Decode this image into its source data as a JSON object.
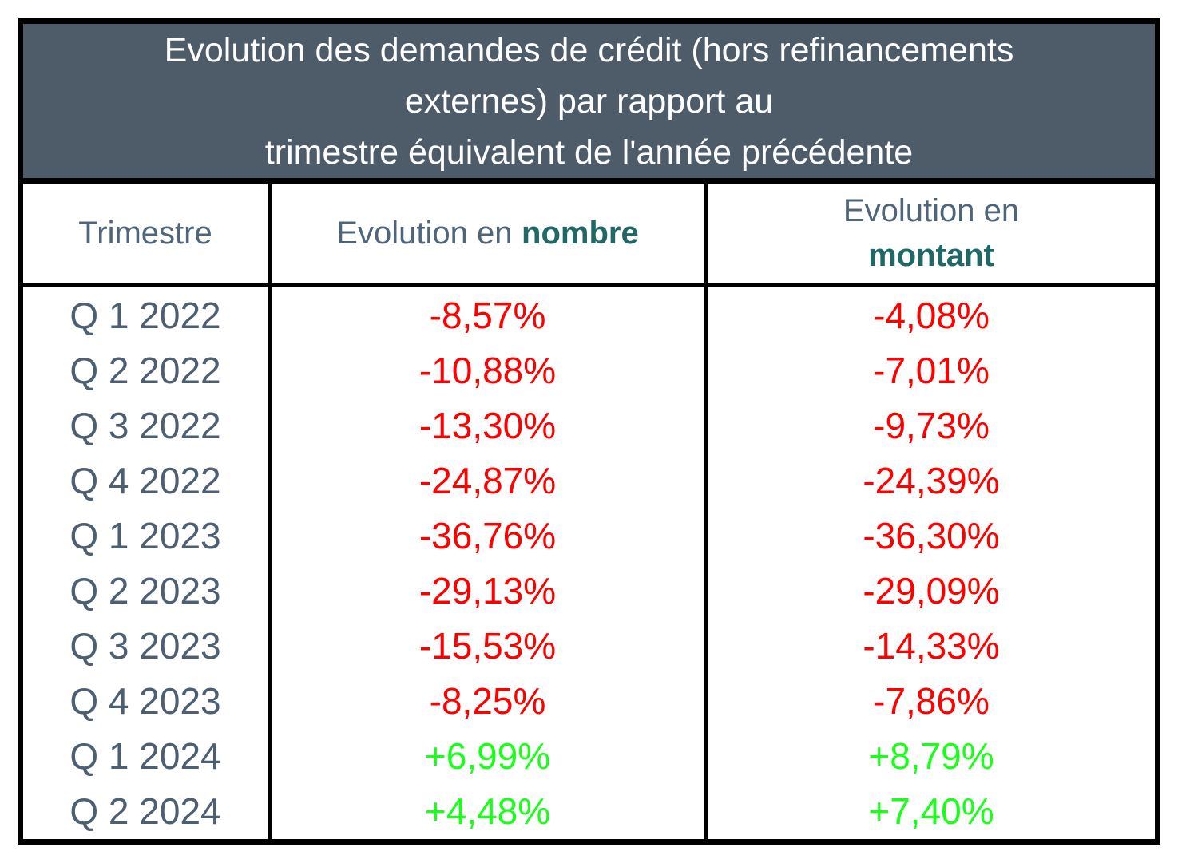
{
  "title_lines": [
    "Evolution des demandes de crédit (hors refinancements",
    "externes) par rapport au",
    "trimestre équivalent de l'année précédente"
  ],
  "headers": {
    "trimestre": "Trimestre",
    "evolution_en": "Evolution en",
    "nombre": "nombre",
    "montant": "montant"
  },
  "rows": [
    {
      "quarter": "Q 1 2022",
      "nombre": "-8,57%",
      "montant": "-4,08%",
      "trend": "neg"
    },
    {
      "quarter": "Q 2 2022",
      "nombre": "-10,88%",
      "montant": "-7,01%",
      "trend": "neg"
    },
    {
      "quarter": "Q 3 2022",
      "nombre": "-13,30%",
      "montant": "-9,73%",
      "trend": "neg"
    },
    {
      "quarter": "Q 4 2022",
      "nombre": "-24,87%",
      "montant": "-24,39%",
      "trend": "neg"
    },
    {
      "quarter": "Q 1 2023",
      "nombre": "-36,76%",
      "montant": "-36,30%",
      "trend": "neg"
    },
    {
      "quarter": "Q 2 2023",
      "nombre": "-29,13%",
      "montant": "-29,09%",
      "trend": "neg"
    },
    {
      "quarter": "Q 3 2023",
      "nombre": "-15,53%",
      "montant": "-14,33%",
      "trend": "neg"
    },
    {
      "quarter": "Q 4 2023",
      "nombre": "-8,25%",
      "montant": "-7,86%",
      "trend": "neg"
    },
    {
      "quarter": "Q 1 2024",
      "nombre": "+6,99%",
      "montant": "+8,79%",
      "trend": "pos"
    },
    {
      "quarter": "Q 2 2024",
      "nombre": "+4,48%",
      "montant": "+7,40%",
      "trend": "pos"
    }
  ],
  "colors": {
    "title_background": "#4e5c6a",
    "title_text": "#fdfdfd",
    "header_text": "#4f657a",
    "header_bold_accent": "#1f6866",
    "quarter_text": "#4d5f72",
    "negative_value": "#ff0000",
    "positive_value": "#1aff1a",
    "border": "#000000"
  },
  "chart_data": {
    "type": "table",
    "title": "Evolution des demandes de crédit (hors refinancements externes) par rapport au trimestre équivalent de l'année précédente",
    "columns": [
      "Trimestre",
      "Evolution en nombre",
      "Evolution en montant"
    ],
    "categories": [
      "Q 1 2022",
      "Q 2 2022",
      "Q 3 2022",
      "Q 4 2022",
      "Q 1 2023",
      "Q 2 2023",
      "Q 3 2023",
      "Q 4 2023",
      "Q 1 2024",
      "Q 2 2024"
    ],
    "series": [
      {
        "name": "Evolution en nombre",
        "values": [
          -8.57,
          -10.88,
          -13.3,
          -24.87,
          -36.76,
          -29.13,
          -15.53,
          -8.25,
          6.99,
          4.48
        ]
      },
      {
        "name": "Evolution en montant",
        "values": [
          -4.08,
          -7.01,
          -9.73,
          -24.39,
          -36.3,
          -29.09,
          -14.33,
          -7.86,
          8.79,
          7.4
        ]
      }
    ],
    "value_format": "percent, comma decimal separator, explicit +/- sign",
    "color_coding": "negative values red, positive values bright green"
  }
}
